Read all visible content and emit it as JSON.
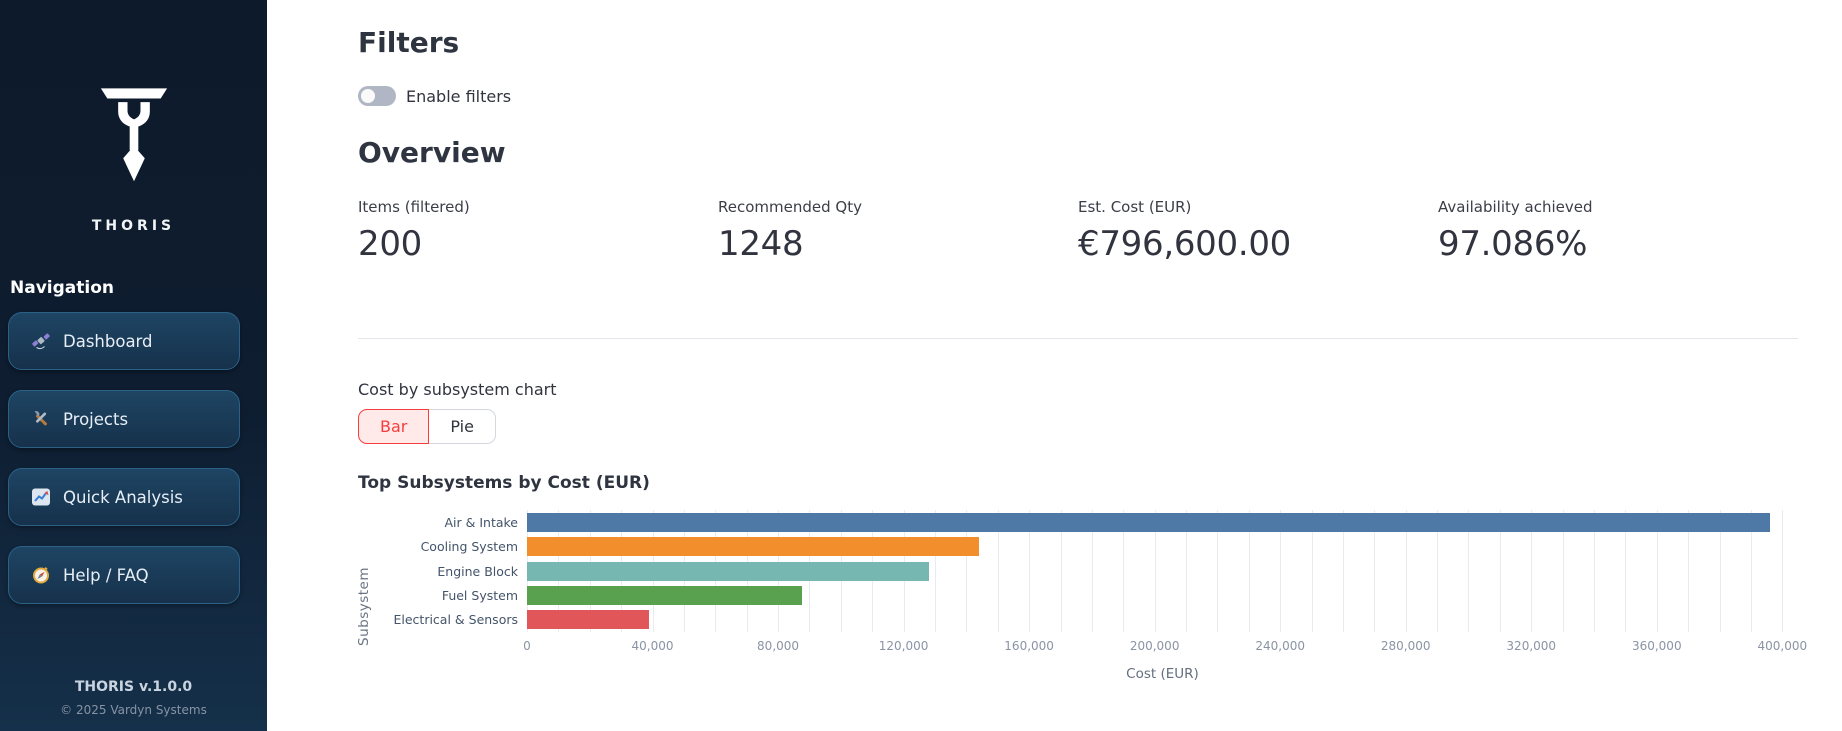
{
  "sidebar": {
    "brand": "THORIS",
    "nav_heading": "Navigation",
    "items": [
      {
        "label": "Dashboard",
        "icon": "satellite-icon"
      },
      {
        "label": "Projects",
        "icon": "tools-icon"
      },
      {
        "label": "Quick Analysis",
        "icon": "chart-icon"
      },
      {
        "label": "Help / FAQ",
        "icon": "compass-icon"
      }
    ],
    "footer": {
      "version": "THORIS v.1.0.0",
      "copyright": "© 2025 Vardyn Systems"
    }
  },
  "filters": {
    "title": "Filters",
    "toggle_label": "Enable filters",
    "toggle_on": false
  },
  "overview": {
    "title": "Overview",
    "metrics": [
      {
        "label": "Items (filtered)",
        "value": "200"
      },
      {
        "label": "Recommended Qty",
        "value": "1248"
      },
      {
        "label": "Est. Cost (EUR)",
        "value": "€796,600.00"
      },
      {
        "label": "Availability achieved",
        "value": "97.086%"
      }
    ]
  },
  "chart_section": {
    "control_label": "Cost by subsystem chart",
    "options": [
      {
        "label": "Bar",
        "selected": true
      },
      {
        "label": "Pie",
        "selected": false
      }
    ]
  },
  "chart_data": {
    "type": "bar",
    "orientation": "horizontal",
    "title": "Top Subsystems by Cost (EUR)",
    "categories": [
      "Air & Intake",
      "Cooling System",
      "Engine Block",
      "Fuel System",
      "Electrical & Sensors"
    ],
    "values": [
      396000,
      144000,
      128000,
      87500,
      39000
    ],
    "bar_colors": [
      "#4e79a7",
      "#f28e2b",
      "#76b7b2",
      "#59a14f",
      "#e15759"
    ],
    "xlabel": "Cost (EUR)",
    "ylabel": "Subsystem",
    "xlim": [
      0,
      405000
    ],
    "xticks": [
      0,
      40000,
      80000,
      120000,
      160000,
      200000,
      240000,
      280000,
      320000,
      360000,
      400000
    ],
    "grid": true,
    "gridline_interval": 10000,
    "legend": "none"
  },
  "colors": {
    "accent": "#ff4b4b",
    "sidebar_bg": "#0e1b2c",
    "selected_pill_bg": "#ffe9e9"
  }
}
